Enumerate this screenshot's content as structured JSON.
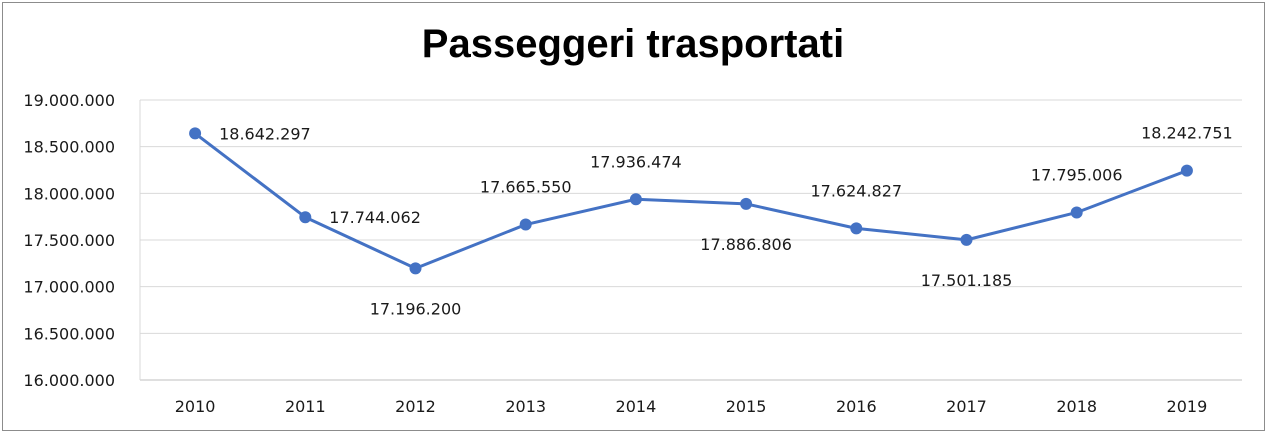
{
  "chart_data": {
    "type": "line",
    "title": "Passeggeri trasportati",
    "xlabel": "",
    "ylabel": "",
    "categories": [
      "2010",
      "2011",
      "2012",
      "2013",
      "2014",
      "2015",
      "2016",
      "2017",
      "2018",
      "2019"
    ],
    "series": [
      {
        "values": [
          18642297,
          17744062,
          17196200,
          17665550,
          17936474,
          17886806,
          17624827,
          17501185,
          17795006,
          18242751
        ],
        "labels": [
          "18.642.297",
          "17.744.062",
          "17.196.200",
          "17.665.550",
          "17.936.474",
          "17.886.806",
          "17.624.827",
          "17.501.185",
          "17.795.006",
          "18.242.751"
        ],
        "label_positions": [
          "right",
          "right",
          "below",
          "above",
          "above",
          "below",
          "above",
          "below",
          "above",
          "above"
        ],
        "color": "#4472c4"
      }
    ],
    "ylim": [
      16000000,
      19000000
    ],
    "yticks": [
      19000000,
      18500000,
      18000000,
      17500000,
      17000000,
      16500000,
      16000000
    ],
    "ytick_labels": [
      "19.000.000",
      "18.500.000",
      "18.000.000",
      "17.500.000",
      "17.000.000",
      "16.500.000",
      "16.000.000"
    ],
    "grid": true,
    "legend": "none"
  }
}
